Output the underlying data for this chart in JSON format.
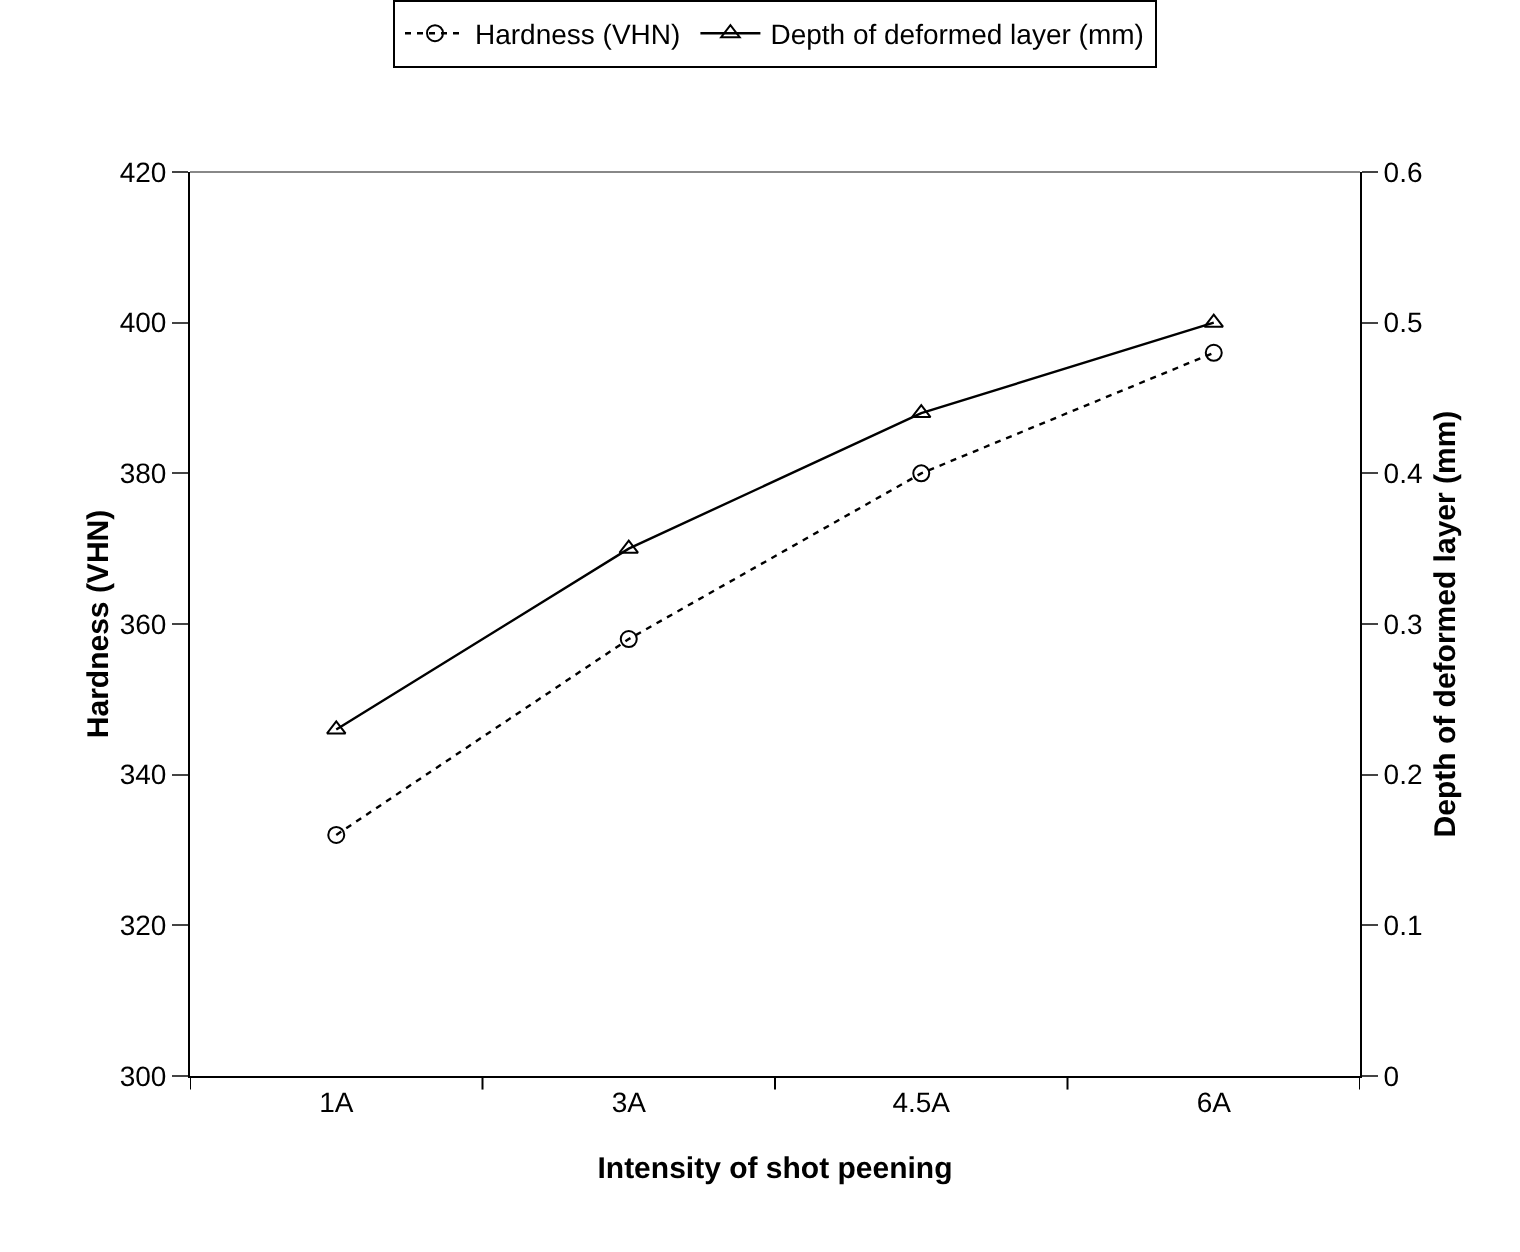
{
  "chart_data": {
    "type": "line",
    "xlabel": "Intensity of shot peening",
    "ylabel": "Hardness (VHN)",
    "y2label": "Depth of deformed layer (mm)",
    "categories": [
      "1A",
      "3A",
      "4.5A",
      "6A"
    ],
    "series": [
      {
        "name": "Hardness (VHN)",
        "color": "#000000",
        "values": [
          332,
          358,
          380,
          396
        ],
        "marker": "circle",
        "line_style": "dotted"
      },
      {
        "name": "Depth of deformed layer (mm)",
        "color": "#000000",
        "values": [
          0.23,
          0.35,
          0.44,
          0.5
        ],
        "marker": "triangle",
        "line_style": "solid",
        "axis": "y2"
      }
    ],
    "ylim": [
      300,
      420
    ],
    "yticks": [
      300,
      320,
      340,
      360,
      380,
      400,
      420
    ],
    "y2lim": [
      0,
      0.6
    ],
    "y2ticks": [
      0,
      0.1,
      0.2,
      0.3,
      0.4,
      0.5,
      0.6
    ],
    "grid": false,
    "legend": "top"
  }
}
